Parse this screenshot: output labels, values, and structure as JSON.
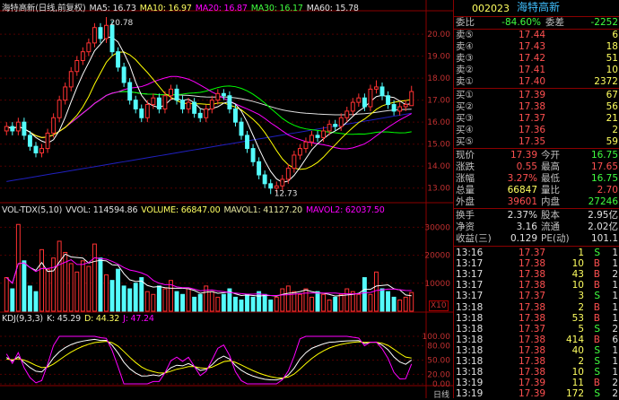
{
  "price_legend": {
    "name": "海特高新(日线,前复权)",
    "ma5": "MA5: 16.73",
    "ma10": "MA10: 16.97",
    "ma20": "MA20: 16.87",
    "ma30": "MA30: 16.17",
    "ma60": "MA60: 15.78"
  },
  "annotations": {
    "high": "20.78",
    "low": "12.73"
  },
  "vol_legend": {
    "name": "VOL-TDX(5,10)",
    "vvol": "VVOL: 114594.86",
    "volume": "VOLUME: 66847.00",
    "mavol1": "MAVOL1: 41127.20",
    "mavol2": "MAVOL2: 62037.50"
  },
  "kdj_legend": {
    "name": "KDJ(9,3,3)",
    "k": "K: 45.29",
    "d": "D: 44.32",
    "j": "J: 47.24"
  },
  "colors": {
    "up": "#ff3232",
    "down": "#54fcfc",
    "ma5": "#ffffff",
    "ma10": "#ffff00",
    "ma20": "#ff00ff",
    "ma30": "#00ff00",
    "ma60": "#e0e0e0",
    "ma_long": "#2020c0"
  },
  "chart_data": {
    "type": "candlestick",
    "price_axis": {
      "ticks": [
        "20.00",
        "19.00",
        "18.00",
        "17.00",
        "16.00",
        "15.00",
        "14.00",
        "13.00"
      ],
      "ylim": [
        12.5,
        20.9
      ]
    },
    "open": [
      15.6,
      15.8,
      15.6,
      16.0,
      15.4,
      14.9,
      14.6,
      14.8,
      15.5,
      16.2,
      17.0,
      17.6,
      18.3,
      18.8,
      19.2,
      19.6,
      20.3,
      19.8,
      20.4,
      19.2,
      18.5,
      17.8,
      17.0,
      16.6,
      16.2,
      16.8,
      17.1,
      16.6,
      17.2,
      17.5,
      17.0,
      16.6,
      16.9,
      16.4,
      16.2,
      16.6,
      17.0,
      17.3,
      17.2,
      16.6,
      16.0,
      15.4,
      14.8,
      14.2,
      13.6,
      13.2,
      13.0,
      13.1,
      13.4,
      13.9,
      14.5,
      14.8,
      15.1,
      15.4,
      15.3,
      15.6,
      15.9,
      15.8,
      16.2,
      16.5,
      16.9,
      17.1,
      16.7,
      17.5,
      17.6,
      17.2,
      16.8,
      16.5,
      16.7,
      16.75
    ],
    "high": [
      16.0,
      16.0,
      16.2,
      16.2,
      15.6,
      15.1,
      15.0,
      15.7,
      16.4,
      17.2,
      17.8,
      18.5,
      19.0,
      19.4,
      19.8,
      20.5,
      20.5,
      20.78,
      20.6,
      19.4,
      18.7,
      18.0,
      17.2,
      16.8,
      17.0,
      17.3,
      17.3,
      17.4,
      17.7,
      17.7,
      17.2,
      17.1,
      17.1,
      16.6,
      16.8,
      17.2,
      17.5,
      17.5,
      17.4,
      16.8,
      16.2,
      15.6,
      15.0,
      14.4,
      13.8,
      13.4,
      13.3,
      13.6,
      14.1,
      14.7,
      15.0,
      15.3,
      15.6,
      15.6,
      15.8,
      16.1,
      16.1,
      16.4,
      16.7,
      17.1,
      17.3,
      17.3,
      17.7,
      17.9,
      17.8,
      17.4,
      17.0,
      16.9,
      17.0,
      17.65
    ],
    "low": [
      15.4,
      15.4,
      15.4,
      15.2,
      14.7,
      14.4,
      14.4,
      14.6,
      15.3,
      16.0,
      16.8,
      17.4,
      18.1,
      18.6,
      19.0,
      19.4,
      19.6,
      19.6,
      19.0,
      18.3,
      17.6,
      16.8,
      16.4,
      16.0,
      16.0,
      16.6,
      16.4,
      16.4,
      17.0,
      16.8,
      16.4,
      16.4,
      16.2,
      16.0,
      16.0,
      16.4,
      16.8,
      17.0,
      16.4,
      15.8,
      15.2,
      14.6,
      14.0,
      13.4,
      13.0,
      12.73,
      12.8,
      12.9,
      13.2,
      13.7,
      14.3,
      14.6,
      14.9,
      15.1,
      15.1,
      15.4,
      15.6,
      15.6,
      16.0,
      16.3,
      16.7,
      16.5,
      16.5,
      17.3,
      17.0,
      16.6,
      16.3,
      16.3,
      16.5,
      16.75
    ],
    "close": [
      15.8,
      15.6,
      16.0,
      15.4,
      14.9,
      14.6,
      14.8,
      15.5,
      16.2,
      17.0,
      17.6,
      18.3,
      18.8,
      19.2,
      19.6,
      20.3,
      19.8,
      20.4,
      19.2,
      18.5,
      17.8,
      17.0,
      16.6,
      16.2,
      16.8,
      17.1,
      16.6,
      17.2,
      17.5,
      17.0,
      16.6,
      16.9,
      16.4,
      16.2,
      16.6,
      17.0,
      17.3,
      17.2,
      16.6,
      16.0,
      15.4,
      14.8,
      14.2,
      13.6,
      13.2,
      13.0,
      13.1,
      13.4,
      13.9,
      14.5,
      14.8,
      15.1,
      15.4,
      15.3,
      15.6,
      15.9,
      15.8,
      16.2,
      16.5,
      16.9,
      17.1,
      16.7,
      17.5,
      17.6,
      17.2,
      16.8,
      16.5,
      16.7,
      16.8,
      17.39
    ],
    "volume_axis": {
      "ticks": [
        "30000",
        "20000",
        "10000"
      ],
      "unit": "X10",
      "ylim": [
        0,
        33000
      ]
    },
    "volume": [
      12000,
      8000,
      31000,
      18000,
      9000,
      7000,
      22000,
      15000,
      19000,
      25000,
      21000,
      17000,
      14000,
      18000,
      16000,
      24000,
      19000,
      13000,
      11000,
      15000,
      9000,
      8000,
      10000,
      12000,
      7000,
      6000,
      9000,
      8000,
      11000,
      7000,
      6000,
      8000,
      5000,
      6000,
      9000,
      7000,
      5000,
      6000,
      8000,
      5000,
      4000,
      6000,
      5000,
      7000,
      6000,
      4000,
      5000,
      8000,
      9000,
      7000,
      6000,
      8000,
      5000,
      7000,
      6000,
      4000,
      5000,
      6000,
      8000,
      7000,
      6000,
      12000,
      6000,
      14000,
      8000,
      7000,
      5000,
      4000,
      5000,
      6685
    ],
    "kdj_axis": {
      "ticks": [
        "100.00",
        "80.00",
        "50.00",
        "20.00",
        "0.00"
      ],
      "ylim": [
        0,
        100
      ]
    }
  },
  "bottom": {
    "period": "日线"
  },
  "panel": {
    "code": "002023",
    "name": "海特高新",
    "weibi": {
      "label": "委比",
      "value": "-84.60%",
      "label2": "委差",
      "value2": "-2252"
    },
    "sells": [
      {
        "label": "卖⑤",
        "price": "17.44",
        "vol": "6"
      },
      {
        "label": "卖④",
        "price": "17.43",
        "vol": "18"
      },
      {
        "label": "卖③",
        "price": "17.42",
        "vol": "51"
      },
      {
        "label": "卖②",
        "price": "17.41",
        "vol": "10"
      },
      {
        "label": "卖①",
        "price": "17.40",
        "vol": "2372"
      }
    ],
    "buys": [
      {
        "label": "买①",
        "price": "17.39",
        "vol": "67"
      },
      {
        "label": "买②",
        "price": "17.38",
        "vol": "56"
      },
      {
        "label": "买③",
        "price": "17.37",
        "vol": "21"
      },
      {
        "label": "买④",
        "price": "17.36",
        "vol": "2"
      },
      {
        "label": "买⑤",
        "price": "17.35",
        "vol": "59"
      }
    ],
    "quote": [
      {
        "l1": "现价",
        "v1": "17.39",
        "c1": "red",
        "l2": "今开",
        "v2": "16.75",
        "c2": "grn"
      },
      {
        "l1": "涨跌",
        "v1": "0.55",
        "c1": "red",
        "l2": "最高",
        "v2": "17.65",
        "c2": "red"
      },
      {
        "l1": "涨幅",
        "v1": "3.27%",
        "c1": "red",
        "l2": "最低",
        "v2": "16.75",
        "c2": "grn"
      },
      {
        "l1": "总量",
        "v1": "66847",
        "c1": "yel",
        "l2": "量比",
        "v2": "2.70",
        "c2": "red"
      },
      {
        "l1": "外盘",
        "v1": "39601",
        "c1": "red",
        "l2": "内盘",
        "v2": "27246",
        "c2": "grn"
      }
    ],
    "info": [
      {
        "l1": "换手",
        "v1": "2.37%",
        "l2": "股本",
        "v2": "2.95亿"
      },
      {
        "l1": "净资",
        "v1": "3.16",
        "l2": "流通",
        "v2": "2.02亿"
      },
      {
        "l1": "收益(三)",
        "v1": "0.129",
        "l2": "PE(动)",
        "v2": "101.1"
      }
    ],
    "ticks": [
      {
        "t": "13:16",
        "p": "17.37",
        "v": "1",
        "s": "S",
        "n": "1"
      },
      {
        "t": "13:17",
        "p": "17.38",
        "v": "10",
        "s": "B",
        "n": "1"
      },
      {
        "t": "13:17",
        "p": "17.38",
        "v": "43",
        "s": "B",
        "n": "2"
      },
      {
        "t": "13:17",
        "p": "17.38",
        "v": "10",
        "s": "B",
        "n": "1"
      },
      {
        "t": "13:17",
        "p": "17.37",
        "v": "3",
        "s": "S",
        "n": "1"
      },
      {
        "t": "13:18",
        "p": "17.38",
        "v": "2",
        "s": "B",
        "n": "1"
      },
      {
        "t": "13:18",
        "p": "17.38",
        "v": "53",
        "s": "B",
        "n": "1"
      },
      {
        "t": "13:18",
        "p": "17.37",
        "v": "5",
        "s": "S",
        "n": "2"
      },
      {
        "t": "13:18",
        "p": "17.38",
        "v": "414",
        "s": "B",
        "n": "6"
      },
      {
        "t": "13:18",
        "p": "17.38",
        "v": "40",
        "s": "S",
        "n": "1"
      },
      {
        "t": "13:18",
        "p": "17.38",
        "v": "2",
        "s": "S",
        "n": "1"
      },
      {
        "t": "13:18",
        "p": "17.38",
        "v": "10",
        "s": "S",
        "n": "1"
      },
      {
        "t": "13:19",
        "p": "17.39",
        "v": "11",
        "s": "B",
        "n": "2"
      },
      {
        "t": "13:19",
        "p": "17.39",
        "v": "172",
        "s": "S",
        "n": "2"
      }
    ]
  }
}
